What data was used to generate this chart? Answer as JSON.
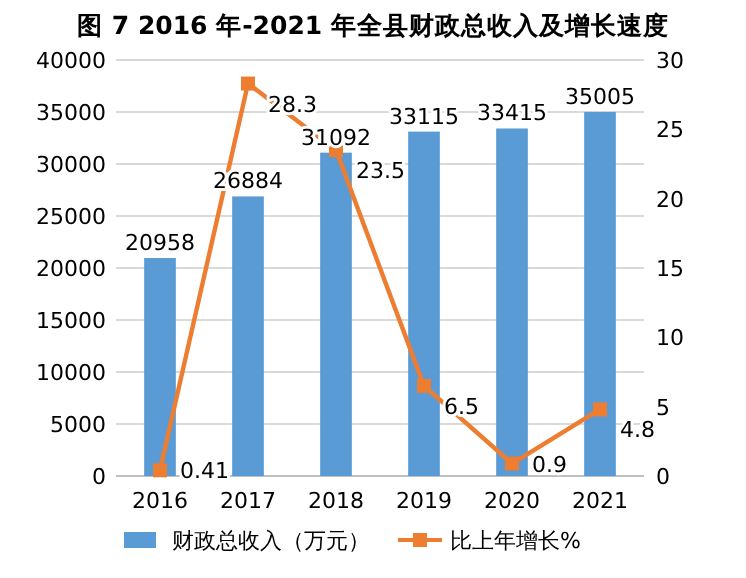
{
  "chart_data": {
    "type": "bar",
    "title": "图 7 2016 年-2021 年全县财政总收入及增长速度",
    "categories": [
      "2016",
      "2017",
      "2018",
      "2019",
      "2020",
      "2021"
    ],
    "series": [
      {
        "name": "财政总收入（万元）",
        "color": "#5b9bd5",
        "values": [
          20958,
          26884,
          31092,
          33115,
          33415,
          35005
        ]
      },
      {
        "name": "比上年增长%",
        "type": "line",
        "axis": "y2",
        "color": "#ed7d31",
        "marker": "square",
        "values": [
          0.41,
          28.3,
          23.5,
          6.5,
          0.9,
          4.8
        ]
      }
    ],
    "ylim": [
      0,
      40000
    ],
    "yticks": [
      0,
      5000,
      10000,
      15000,
      20000,
      25000,
      30000,
      35000,
      40000
    ],
    "y2lim": [
      0,
      30
    ],
    "y2ticks": [
      0,
      5,
      10,
      15,
      20,
      25,
      30
    ],
    "grid": "y",
    "legend": "bottom",
    "data_labels": true
  }
}
